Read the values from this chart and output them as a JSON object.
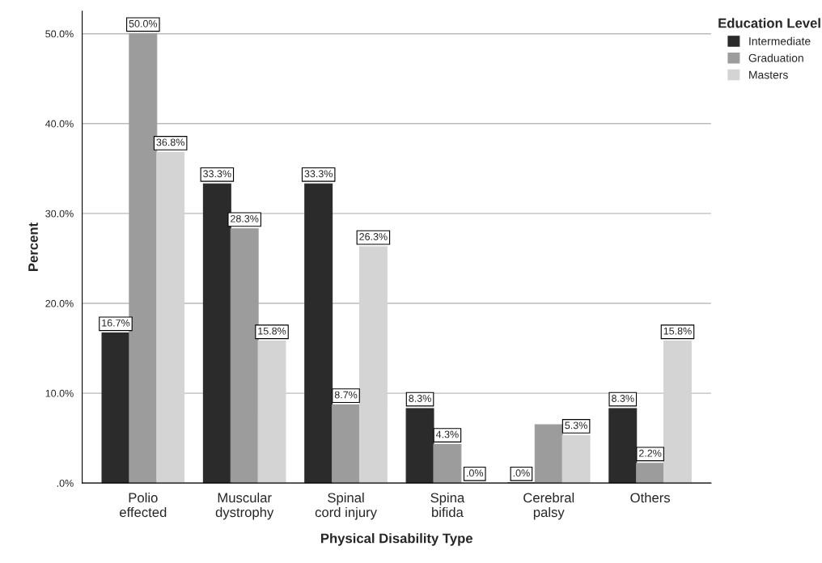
{
  "chart_data": {
    "type": "bar",
    "xlabel": "Physical Disability Type",
    "ylabel": "Percent",
    "legend_title": "Education Level",
    "categories": [
      "Polio\neffected",
      "Muscular\ndystrophy",
      "Spinal\ncord injury",
      "Spina\nbifida",
      "Cerebral\npalsy",
      "Others"
    ],
    "series": [
      {
        "name": "Intermediate",
        "color": "#2b2b2b",
        "values": [
          16.7,
          33.3,
          33.3,
          8.3,
          0.0,
          8.3
        ],
        "value_labels": [
          "16.7%",
          "33.3%",
          "33.3%",
          "8.3%",
          ".0%",
          "8.3%"
        ]
      },
      {
        "name": "Graduation",
        "color": "#9c9c9c",
        "values": [
          50.0,
          28.3,
          8.7,
          4.3,
          6.5,
          2.2
        ],
        "value_labels": [
          "50.0%",
          "28.3%",
          "8.7%",
          "4.3%",
          null,
          "2.2%"
        ]
      },
      {
        "name": "Masters",
        "color": "#d4d4d4",
        "values": [
          36.8,
          15.8,
          26.3,
          0.0,
          5.3,
          15.8
        ],
        "value_labels": [
          "36.8%",
          "15.8%",
          "26.3%",
          ".0%",
          "5.3%",
          "15.8%"
        ]
      }
    ],
    "ylim": [
      0,
      52.5
    ],
    "yticks": [
      {
        "value": 0,
        "label": ".0%"
      },
      {
        "value": 10,
        "label": "10.0%"
      },
      {
        "value": 20,
        "label": "20.0%"
      },
      {
        "value": 30,
        "label": "30.0%"
      },
      {
        "value": 40,
        "label": "40.0%"
      },
      {
        "value": 50,
        "label": "50.0%"
      }
    ],
    "grid": "y",
    "legend": "top right"
  }
}
